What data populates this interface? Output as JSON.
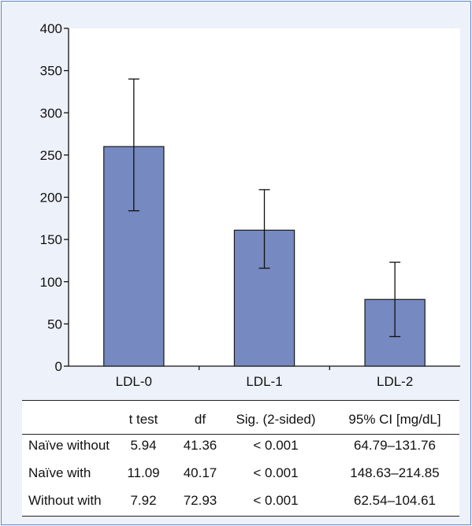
{
  "chart_data": {
    "type": "bar",
    "categories": [
      "LDL-0",
      "LDL-1",
      "LDL-2"
    ],
    "values": [
      260,
      161,
      79
    ],
    "error_low": [
      184,
      116,
      35
    ],
    "error_high": [
      340,
      209,
      123
    ],
    "ylim": [
      0,
      400
    ],
    "yticks": [
      0,
      50,
      100,
      150,
      200,
      250,
      300,
      350,
      400
    ],
    "title": "",
    "xlabel": "",
    "ylabel": "",
    "bar_color": "#7689c0",
    "bar_stroke": "#1a1a1a",
    "grid": false
  },
  "stats_table": {
    "headers": [
      "",
      "t test",
      "df",
      "Sig. (2-sided)",
      "95% CI [mg/dL]"
    ],
    "rows": [
      [
        "Naïve without",
        "5.94",
        "41.36",
        "< 0.001",
        "64.79–131.76"
      ],
      [
        "Naïve with",
        "11.09",
        "40.17",
        "< 0.001",
        "148.63–214.85"
      ],
      [
        "Without with",
        "7.92",
        "72.93",
        "< 0.001",
        "62.54–104.61"
      ]
    ]
  }
}
